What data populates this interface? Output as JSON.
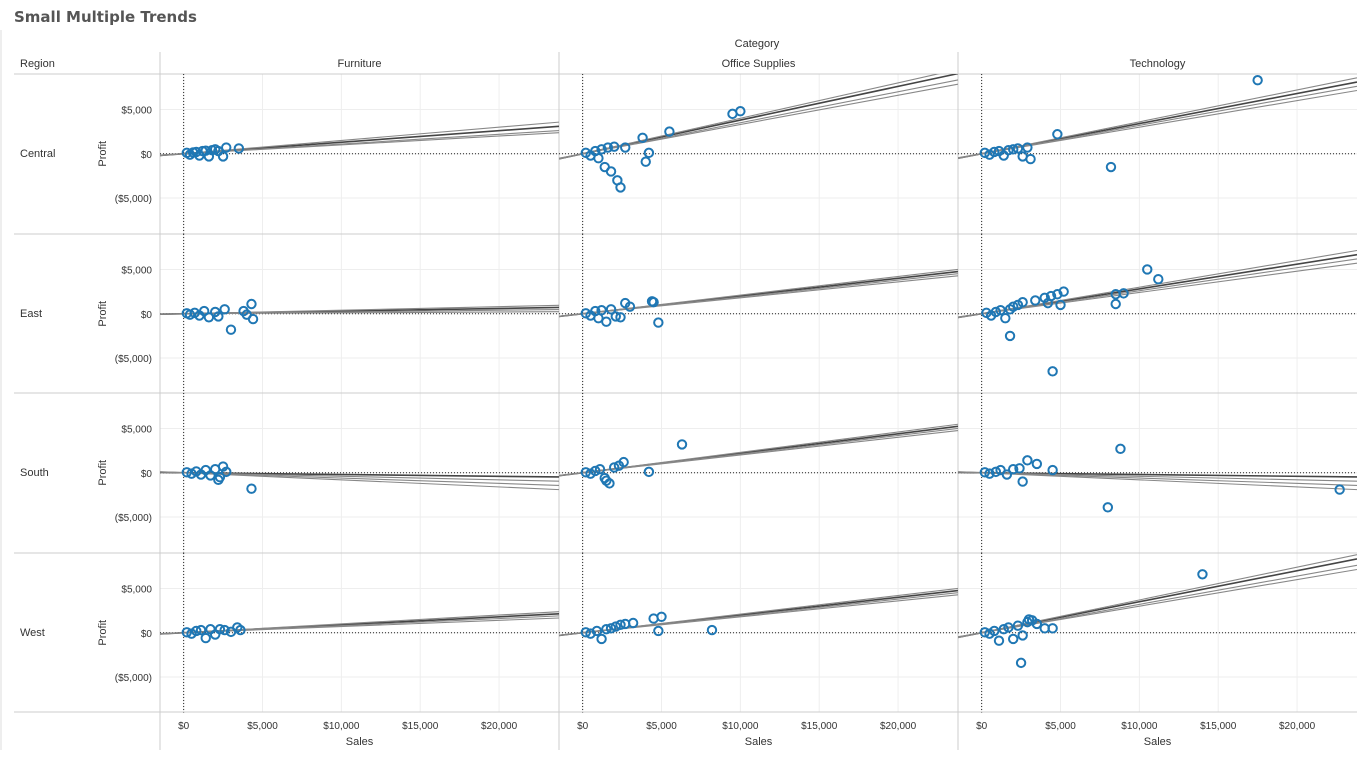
{
  "title": "Small Multiple Trends",
  "chart_data": {
    "type": "scatter",
    "title": "Small Multiple Trends",
    "column_header": "Category",
    "row_header": "Region",
    "columns": [
      "Furniture",
      "Office Supplies",
      "Technology"
    ],
    "rows": [
      "Central",
      "East",
      "South",
      "West"
    ],
    "xlabel": "Sales",
    "ylabel": "Profit",
    "xlim": [
      -1500,
      23800
    ],
    "ylim": [
      -9000,
      9000
    ],
    "xticks": [
      0,
      5000,
      10000,
      15000,
      20000
    ],
    "xtick_labels": [
      "$0",
      "$5,000",
      "$10,000",
      "$15,000",
      "$20,000"
    ],
    "yticks": [
      5000,
      0,
      -5000
    ],
    "ytick_labels": [
      "$5,000",
      "$0",
      "($5,000)"
    ],
    "colors": {
      "point": "#1f77b4",
      "trend": "#888888",
      "trend_main": "#444444",
      "grid": "#eeeeee",
      "divider": "#cccccc"
    },
    "panels": [
      {
        "row": "Central",
        "column": "Furniture",
        "trend_slopes": [
          0.13,
          0.11,
          0.1,
          0.15
        ],
        "points": [
          [
            200,
            100
          ],
          [
            400,
            -100
          ],
          [
            600,
            150
          ],
          [
            800,
            200
          ],
          [
            1000,
            -200
          ],
          [
            1200,
            300
          ],
          [
            1400,
            350
          ],
          [
            1600,
            -300
          ],
          [
            1800,
            400
          ],
          [
            2000,
            500
          ],
          [
            2200,
            300
          ],
          [
            2500,
            -300
          ],
          [
            2700,
            700
          ],
          [
            3500,
            600
          ]
        ]
      },
      {
        "row": "Central",
        "column": "Office Supplies",
        "trend_slopes": [
          0.38,
          0.35,
          0.33,
          0.4
        ],
        "points": [
          [
            200,
            100
          ],
          [
            500,
            -200
          ],
          [
            800,
            300
          ],
          [
            1000,
            -500
          ],
          [
            1200,
            500
          ],
          [
            1400,
            -1500
          ],
          [
            1600,
            700
          ],
          [
            1800,
            -2000
          ],
          [
            2000,
            800
          ],
          [
            2200,
            -3000
          ],
          [
            2400,
            -3800
          ],
          [
            2700,
            700
          ],
          [
            3800,
            1800
          ],
          [
            4000,
            -900
          ],
          [
            4200,
            100
          ],
          [
            5500,
            2500
          ],
          [
            9500,
            4500
          ],
          [
            10000,
            4800
          ]
        ]
      },
      {
        "row": "Central",
        "column": "Technology",
        "trend_slopes": [
          0.34,
          0.32,
          0.3,
          0.36
        ],
        "points": [
          [
            200,
            100
          ],
          [
            500,
            -100
          ],
          [
            800,
            200
          ],
          [
            1100,
            300
          ],
          [
            1400,
            -200
          ],
          [
            1700,
            400
          ],
          [
            2000,
            500
          ],
          [
            2300,
            600
          ],
          [
            2600,
            -300
          ],
          [
            2900,
            700
          ],
          [
            3100,
            -600
          ],
          [
            4800,
            2200
          ],
          [
            8200,
            -1500
          ],
          [
            17500,
            8300
          ]
        ]
      },
      {
        "row": "East",
        "column": "Furniture",
        "trend_slopes": [
          0.03,
          0.02,
          0.01,
          0.04
        ],
        "points": [
          [
            200,
            50
          ],
          [
            400,
            -100
          ],
          [
            700,
            100
          ],
          [
            1000,
            -200
          ],
          [
            1300,
            300
          ],
          [
            1600,
            -400
          ],
          [
            2000,
            200
          ],
          [
            2200,
            -300
          ],
          [
            2600,
            500
          ],
          [
            3000,
            -1800
          ],
          [
            3800,
            300
          ],
          [
            4000,
            -100
          ],
          [
            4300,
            1100
          ],
          [
            4400,
            -600
          ]
        ]
      },
      {
        "row": "East",
        "column": "Office Supplies",
        "trend_slopes": [
          0.2,
          0.19,
          0.18,
          0.21
        ],
        "points": [
          [
            200,
            50
          ],
          [
            500,
            -200
          ],
          [
            800,
            300
          ],
          [
            1000,
            -500
          ],
          [
            1200,
            400
          ],
          [
            1500,
            -900
          ],
          [
            1800,
            500
          ],
          [
            2100,
            -300
          ],
          [
            2400,
            -400
          ],
          [
            2700,
            1200
          ],
          [
            3000,
            800
          ],
          [
            4400,
            1400
          ],
          [
            4500,
            1300
          ],
          [
            4800,
            -1000
          ]
        ]
      },
      {
        "row": "East",
        "column": "Technology",
        "trend_slopes": [
          0.28,
          0.26,
          0.24,
          0.3
        ],
        "points": [
          [
            300,
            100
          ],
          [
            600,
            -200
          ],
          [
            900,
            200
          ],
          [
            1200,
            400
          ],
          [
            1500,
            -500
          ],
          [
            1800,
            500
          ],
          [
            2000,
            800
          ],
          [
            2300,
            1000
          ],
          [
            2600,
            1300
          ],
          [
            3400,
            1500
          ],
          [
            4000,
            1800
          ],
          [
            4400,
            2000
          ],
          [
            4800,
            2200
          ],
          [
            5200,
            2500
          ],
          [
            8500,
            2200
          ],
          [
            9000,
            2300
          ],
          [
            1800,
            -2500
          ],
          [
            4500,
            -6500
          ],
          [
            8500,
            1100
          ],
          [
            10500,
            5000
          ],
          [
            11200,
            3900
          ],
          [
            4200,
            1200
          ],
          [
            5000,
            1000
          ]
        ]
      },
      {
        "row": "South",
        "column": "Furniture",
        "trend_slopes": [
          -0.02,
          -0.04,
          -0.06,
          -0.08
        ],
        "points": [
          [
            200,
            50
          ],
          [
            500,
            -100
          ],
          [
            800,
            150
          ],
          [
            1100,
            -200
          ],
          [
            1400,
            300
          ],
          [
            1700,
            -300
          ],
          [
            2000,
            400
          ],
          [
            2200,
            -800
          ],
          [
            2500,
            700
          ],
          [
            2700,
            100
          ],
          [
            2300,
            -500
          ],
          [
            4300,
            -1800
          ]
        ]
      },
      {
        "row": "South",
        "column": "Office Supplies",
        "trend_slopes": [
          0.22,
          0.21,
          0.2,
          0.23
        ],
        "points": [
          [
            200,
            50
          ],
          [
            500,
            -100
          ],
          [
            800,
            200
          ],
          [
            1100,
            400
          ],
          [
            1400,
            -600
          ],
          [
            1700,
            -1200
          ],
          [
            2000,
            600
          ],
          [
            2300,
            800
          ],
          [
            2600,
            1200
          ],
          [
            4200,
            100
          ],
          [
            6300,
            3200
          ],
          [
            1500,
            -900
          ]
        ]
      },
      {
        "row": "South",
        "column": "Technology",
        "trend_slopes": [
          -0.02,
          -0.04,
          -0.06,
          -0.08
        ],
        "points": [
          [
            200,
            50
          ],
          [
            500,
            -100
          ],
          [
            900,
            100
          ],
          [
            1200,
            300
          ],
          [
            1600,
            -200
          ],
          [
            2000,
            400
          ],
          [
            2400,
            500
          ],
          [
            2600,
            -1000
          ],
          [
            2900,
            1400
          ],
          [
            3500,
            1000
          ],
          [
            4500,
            300
          ],
          [
            8800,
            2700
          ],
          [
            8000,
            -3900
          ],
          [
            22700,
            -1900
          ]
        ]
      },
      {
        "row": "West",
        "column": "Furniture",
        "trend_slopes": [
          0.09,
          0.08,
          0.07,
          0.1
        ],
        "points": [
          [
            200,
            50
          ],
          [
            500,
            -100
          ],
          [
            800,
            200
          ],
          [
            1100,
            300
          ],
          [
            1400,
            -600
          ],
          [
            1700,
            400
          ],
          [
            2000,
            -200
          ],
          [
            2300,
            400
          ],
          [
            2600,
            300
          ],
          [
            3000,
            100
          ],
          [
            3400,
            600
          ],
          [
            3600,
            300
          ]
        ]
      },
      {
        "row": "West",
        "column": "Office Supplies",
        "trend_slopes": [
          0.2,
          0.19,
          0.18,
          0.21
        ],
        "points": [
          [
            200,
            50
          ],
          [
            500,
            -100
          ],
          [
            900,
            200
          ],
          [
            1200,
            -700
          ],
          [
            1500,
            400
          ],
          [
            1800,
            500
          ],
          [
            2100,
            700
          ],
          [
            2400,
            900
          ],
          [
            2700,
            1000
          ],
          [
            3200,
            1100
          ],
          [
            4500,
            1600
          ],
          [
            5000,
            1800
          ],
          [
            4800,
            200
          ],
          [
            8200,
            300
          ]
        ]
      },
      {
        "row": "West",
        "column": "Technology",
        "trend_slopes": [
          0.35,
          0.32,
          0.3,
          0.37
        ],
        "points": [
          [
            200,
            50
          ],
          [
            500,
            -100
          ],
          [
            800,
            200
          ],
          [
            1100,
            -900
          ],
          [
            1400,
            400
          ],
          [
            1700,
            600
          ],
          [
            2000,
            -700
          ],
          [
            2300,
            800
          ],
          [
            2600,
            -300
          ],
          [
            2900,
            1200
          ],
          [
            3200,
            1400
          ],
          [
            3500,
            1000
          ],
          [
            4000,
            500
          ],
          [
            4500,
            500
          ],
          [
            2500,
            -3400
          ],
          [
            14000,
            6600
          ],
          [
            3000,
            1500
          ]
        ]
      }
    ]
  }
}
